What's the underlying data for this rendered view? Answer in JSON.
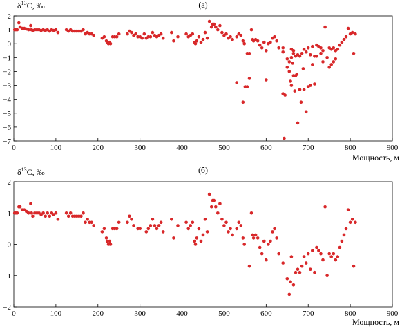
{
  "chart_data": [
    {
      "type": "scatter",
      "panel_label": "(а)",
      "ylabel": "δ13C, ‰",
      "ylabel_parts": {
        "prefix": "δ",
        "sup": "13",
        "suffix": "C, ‰"
      },
      "xlabel": "Мощность, м",
      "xlim": [
        0,
        900
      ],
      "ylim": [
        -7,
        2
      ],
      "x_ticks": [
        0,
        100,
        200,
        300,
        400,
        500,
        600,
        700,
        800,
        900
      ],
      "y_ticks": [
        2,
        1,
        0,
        -1,
        -2,
        -3,
        -4,
        -5,
        -6,
        -7
      ],
      "grid": false,
      "marker_color": "#d8282a",
      "points": [
        [
          2,
          1.0
        ],
        [
          5,
          1.0
        ],
        [
          8,
          1.0
        ],
        [
          12,
          1.5
        ],
        [
          15,
          1.2
        ],
        [
          20,
          1.1
        ],
        [
          25,
          1.1
        ],
        [
          30,
          1.05
        ],
        [
          35,
          1.0
        ],
        [
          40,
          1.3
        ],
        [
          42,
          1.0
        ],
        [
          45,
          0.95
        ],
        [
          50,
          1.0
        ],
        [
          55,
          1.0
        ],
        [
          60,
          1.0
        ],
        [
          65,
          0.95
        ],
        [
          70,
          1.0
        ],
        [
          75,
          0.95
        ],
        [
          80,
          1.0
        ],
        [
          85,
          0.9
        ],
        [
          90,
          1.0
        ],
        [
          95,
          0.95
        ],
        [
          100,
          1.0
        ],
        [
          105,
          0.8
        ],
        [
          125,
          1.0
        ],
        [
          130,
          0.9
        ],
        [
          135,
          1.0
        ],
        [
          140,
          0.9
        ],
        [
          145,
          0.9
        ],
        [
          150,
          0.9
        ],
        [
          155,
          0.9
        ],
        [
          160,
          0.9
        ],
        [
          165,
          1.0
        ],
        [
          170,
          0.7
        ],
        [
          175,
          0.8
        ],
        [
          180,
          0.7
        ],
        [
          185,
          0.7
        ],
        [
          190,
          0.6
        ],
        [
          210,
          0.4
        ],
        [
          215,
          0.5
        ],
        [
          220,
          0.2
        ],
        [
          222,
          0.1
        ],
        [
          225,
          0.0
        ],
        [
          228,
          0.1
        ],
        [
          230,
          0.0
        ],
        [
          235,
          0.5
        ],
        [
          240,
          0.5
        ],
        [
          245,
          0.5
        ],
        [
          250,
          0.7
        ],
        [
          270,
          0.7
        ],
        [
          275,
          0.9
        ],
        [
          280,
          0.8
        ],
        [
          285,
          0.6
        ],
        [
          290,
          0.7
        ],
        [
          295,
          0.5
        ],
        [
          300,
          0.5
        ],
        [
          305,
          0.4
        ],
        [
          310,
          0.7
        ],
        [
          315,
          0.4
        ],
        [
          320,
          0.5
        ],
        [
          325,
          0.5
        ],
        [
          330,
          0.8
        ],
        [
          335,
          0.6
        ],
        [
          340,
          0.5
        ],
        [
          345,
          0.6
        ],
        [
          350,
          0.7
        ],
        [
          355,
          0.4
        ],
        [
          375,
          0.8
        ],
        [
          380,
          0.2
        ],
        [
          390,
          0.5
        ],
        [
          410,
          0.7
        ],
        [
          415,
          0.5
        ],
        [
          420,
          0.6
        ],
        [
          425,
          0.7
        ],
        [
          430,
          0.1
        ],
        [
          432,
          0.0
        ],
        [
          435,
          0.2
        ],
        [
          440,
          0.5
        ],
        [
          445,
          0.1
        ],
        [
          450,
          0.3
        ],
        [
          455,
          0.8
        ],
        [
          460,
          0.4
        ],
        [
          465,
          1.6
        ],
        [
          470,
          1.2
        ],
        [
          473,
          1.4
        ],
        [
          476,
          1.4
        ],
        [
          480,
          1.2
        ],
        [
          485,
          1.0
        ],
        [
          490,
          1.3
        ],
        [
          495,
          0.8
        ],
        [
          500,
          0.6
        ],
        [
          505,
          0.7
        ],
        [
          510,
          0.4
        ],
        [
          515,
          0.5
        ],
        [
          520,
          0.3
        ],
        [
          530,
          0.5
        ],
        [
          535,
          0.7
        ],
        [
          540,
          0.6
        ],
        [
          545,
          0.2
        ],
        [
          548,
          0.0
        ],
        [
          555,
          -0.7
        ],
        [
          560,
          -0.7
        ],
        [
          565,
          1.0
        ],
        [
          568,
          0.3
        ],
        [
          570,
          0.2
        ],
        [
          575,
          0.3
        ],
        [
          580,
          0.2
        ],
        [
          585,
          -0.1
        ],
        [
          590,
          -0.3
        ],
        [
          595,
          0.1
        ],
        [
          600,
          -0.5
        ],
        [
          605,
          0.0
        ],
        [
          610,
          0.1
        ],
        [
          615,
          0.4
        ],
        [
          620,
          0.5
        ],
        [
          625,
          0.2
        ],
        [
          630,
          -0.3
        ],
        [
          640,
          -0.6
        ],
        [
          650,
          -1.1
        ],
        [
          655,
          -1.3
        ],
        [
          660,
          -0.4
        ],
        [
          665,
          -0.7
        ],
        [
          670,
          -0.9
        ],
        [
          675,
          -0.8
        ],
        [
          680,
          -0.9
        ],
        [
          685,
          -0.7
        ],
        [
          690,
          -0.4
        ],
        [
          695,
          -0.6
        ],
        [
          700,
          -0.3
        ],
        [
          705,
          -0.8
        ],
        [
          710,
          -0.2
        ],
        [
          715,
          -0.9
        ],
        [
          720,
          -0.1
        ],
        [
          725,
          -0.2
        ],
        [
          730,
          -0.3
        ],
        [
          735,
          -0.5
        ],
        [
          740,
          1.2
        ],
        [
          745,
          -1.0
        ],
        [
          750,
          -0.3
        ],
        [
          755,
          -0.4
        ],
        [
          760,
          -0.3
        ],
        [
          765,
          -0.5
        ],
        [
          770,
          -0.4
        ],
        [
          775,
          -0.1
        ],
        [
          780,
          0.1
        ],
        [
          785,
          0.3
        ],
        [
          790,
          0.5
        ],
        [
          795,
          1.1
        ],
        [
          800,
          0.7
        ],
        [
          805,
          0.8
        ],
        [
          808,
          -0.7
        ],
        [
          812,
          0.7
        ],
        [
          530,
          -2.8
        ],
        [
          545,
          -4.2
        ],
        [
          550,
          -3.1
        ],
        [
          555,
          -3.1
        ],
        [
          560,
          -2.5
        ],
        [
          600,
          -2.6
        ],
        [
          640,
          -3.6
        ],
        [
          643,
          -6.8
        ],
        [
          645,
          -3.7
        ],
        [
          650,
          -1.7
        ],
        [
          655,
          -2.0
        ],
        [
          658,
          -2.7
        ],
        [
          660,
          -3.0
        ],
        [
          663,
          -1.4
        ],
        [
          665,
          -2.3
        ],
        [
          668,
          -3.4
        ],
        [
          670,
          -2.3
        ],
        [
          673,
          -2.2
        ],
        [
          675,
          -5.7
        ],
        [
          680,
          -3.3
        ],
        [
          683,
          -4.2
        ],
        [
          688,
          -1.8
        ],
        [
          690,
          -3.3
        ],
        [
          695,
          -4.9
        ],
        [
          700,
          -3.1
        ],
        [
          705,
          -3.0
        ],
        [
          710,
          -1.5
        ],
        [
          715,
          -2.9
        ],
        [
          720,
          -0.9
        ],
        [
          730,
          -0.7
        ],
        [
          735,
          -1.3
        ],
        [
          750,
          -1.7
        ],
        [
          755,
          -1.5
        ],
        [
          760,
          -1.3
        ],
        [
          765,
          -1.1
        ],
        [
          660,
          -1.0
        ],
        [
          665,
          -0.5
        ],
        [
          640,
          -0.3
        ]
      ]
    },
    {
      "type": "scatter",
      "panel_label": "(б)",
      "ylabel": "δ13C, ‰",
      "ylabel_parts": {
        "prefix": "δ",
        "sup": "13",
        "suffix": "C, ‰"
      },
      "xlabel": "Мощность, м",
      "xlim": [
        0,
        900
      ],
      "ylim": [
        -2,
        2
      ],
      "x_ticks": [
        0,
        100,
        200,
        300,
        400,
        500,
        600,
        700,
        800,
        900
      ],
      "y_ticks": [
        2,
        1,
        0,
        -1,
        -2
      ],
      "grid": false,
      "marker_color": "#d8282a",
      "points": [
        [
          2,
          1.0
        ],
        [
          5,
          1.0
        ],
        [
          8,
          1.0
        ],
        [
          12,
          1.2
        ],
        [
          15,
          1.2
        ],
        [
          20,
          1.1
        ],
        [
          25,
          1.1
        ],
        [
          30,
          1.05
        ],
        [
          35,
          1.0
        ],
        [
          40,
          1.3
        ],
        [
          42,
          1.0
        ],
        [
          45,
          0.9
        ],
        [
          50,
          1.0
        ],
        [
          55,
          1.0
        ],
        [
          60,
          1.0
        ],
        [
          65,
          0.95
        ],
        [
          70,
          1.0
        ],
        [
          75,
          0.9
        ],
        [
          80,
          1.0
        ],
        [
          85,
          0.9
        ],
        [
          90,
          1.0
        ],
        [
          95,
          0.95
        ],
        [
          100,
          1.0
        ],
        [
          105,
          0.8
        ],
        [
          125,
          1.0
        ],
        [
          130,
          0.9
        ],
        [
          135,
          1.0
        ],
        [
          140,
          0.9
        ],
        [
          145,
          0.9
        ],
        [
          150,
          0.9
        ],
        [
          155,
          0.9
        ],
        [
          160,
          0.9
        ],
        [
          165,
          1.0
        ],
        [
          170,
          0.7
        ],
        [
          175,
          0.8
        ],
        [
          180,
          0.7
        ],
        [
          185,
          0.7
        ],
        [
          190,
          0.6
        ],
        [
          210,
          0.4
        ],
        [
          215,
          0.5
        ],
        [
          220,
          0.2
        ],
        [
          222,
          0.1
        ],
        [
          225,
          0.0
        ],
        [
          228,
          0.1
        ],
        [
          230,
          0.0
        ],
        [
          235,
          0.5
        ],
        [
          240,
          0.5
        ],
        [
          245,
          0.5
        ],
        [
          250,
          0.7
        ],
        [
          270,
          0.7
        ],
        [
          275,
          0.9
        ],
        [
          280,
          0.8
        ],
        [
          285,
          0.6
        ],
        [
          295,
          0.5
        ],
        [
          300,
          0.5
        ],
        [
          315,
          0.4
        ],
        [
          320,
          0.5
        ],
        [
          325,
          0.6
        ],
        [
          330,
          0.8
        ],
        [
          335,
          0.6
        ],
        [
          340,
          0.5
        ],
        [
          345,
          0.6
        ],
        [
          350,
          0.7
        ],
        [
          355,
          0.4
        ],
        [
          375,
          0.8
        ],
        [
          380,
          0.2
        ],
        [
          390,
          0.6
        ],
        [
          410,
          0.7
        ],
        [
          415,
          0.5
        ],
        [
          420,
          0.6
        ],
        [
          425,
          0.7
        ],
        [
          430,
          0.1
        ],
        [
          432,
          0.0
        ],
        [
          435,
          0.2
        ],
        [
          440,
          0.5
        ],
        [
          445,
          0.1
        ],
        [
          450,
          0.3
        ],
        [
          455,
          0.8
        ],
        [
          460,
          0.4
        ],
        [
          465,
          1.6
        ],
        [
          470,
          1.2
        ],
        [
          473,
          1.4
        ],
        [
          476,
          1.4
        ],
        [
          480,
          1.2
        ],
        [
          485,
          1.0
        ],
        [
          490,
          1.3
        ],
        [
          495,
          0.8
        ],
        [
          500,
          0.6
        ],
        [
          505,
          0.7
        ],
        [
          510,
          0.4
        ],
        [
          515,
          0.5
        ],
        [
          520,
          0.3
        ],
        [
          530,
          0.5
        ],
        [
          535,
          0.7
        ],
        [
          540,
          0.6
        ],
        [
          545,
          0.2
        ],
        [
          548,
          0.0
        ],
        [
          560,
          -0.7
        ],
        [
          565,
          1.0
        ],
        [
          568,
          0.3
        ],
        [
          570,
          0.2
        ],
        [
          575,
          0.3
        ],
        [
          580,
          0.2
        ],
        [
          585,
          -0.1
        ],
        [
          590,
          -0.3
        ],
        [
          595,
          0.1
        ],
        [
          600,
          -0.5
        ],
        [
          605,
          0.0
        ],
        [
          610,
          0.1
        ],
        [
          615,
          0.4
        ],
        [
          620,
          0.5
        ],
        [
          625,
          0.2
        ],
        [
          630,
          -0.3
        ],
        [
          640,
          -0.6
        ],
        [
          650,
          -1.1
        ],
        [
          655,
          -1.6
        ],
        [
          658,
          -1.2
        ],
        [
          660,
          -0.4
        ],
        [
          665,
          -1.3
        ],
        [
          670,
          -0.9
        ],
        [
          675,
          -0.8
        ],
        [
          680,
          -0.9
        ],
        [
          685,
          -0.7
        ],
        [
          690,
          -0.4
        ],
        [
          695,
          -0.6
        ],
        [
          700,
          -0.3
        ],
        [
          705,
          -0.8
        ],
        [
          710,
          -0.2
        ],
        [
          715,
          -0.9
        ],
        [
          720,
          -0.1
        ],
        [
          725,
          -0.2
        ],
        [
          730,
          -0.3
        ],
        [
          735,
          -0.5
        ],
        [
          740,
          1.2
        ],
        [
          745,
          -1.0
        ],
        [
          750,
          -0.3
        ],
        [
          755,
          -0.4
        ],
        [
          760,
          -0.3
        ],
        [
          765,
          -0.5
        ],
        [
          770,
          -0.4
        ],
        [
          775,
          -0.1
        ],
        [
          780,
          0.1
        ],
        [
          785,
          0.3
        ],
        [
          790,
          0.5
        ],
        [
          795,
          1.1
        ],
        [
          800,
          0.7
        ],
        [
          805,
          0.8
        ],
        [
          808,
          -0.7
        ],
        [
          812,
          0.7
        ]
      ]
    }
  ]
}
